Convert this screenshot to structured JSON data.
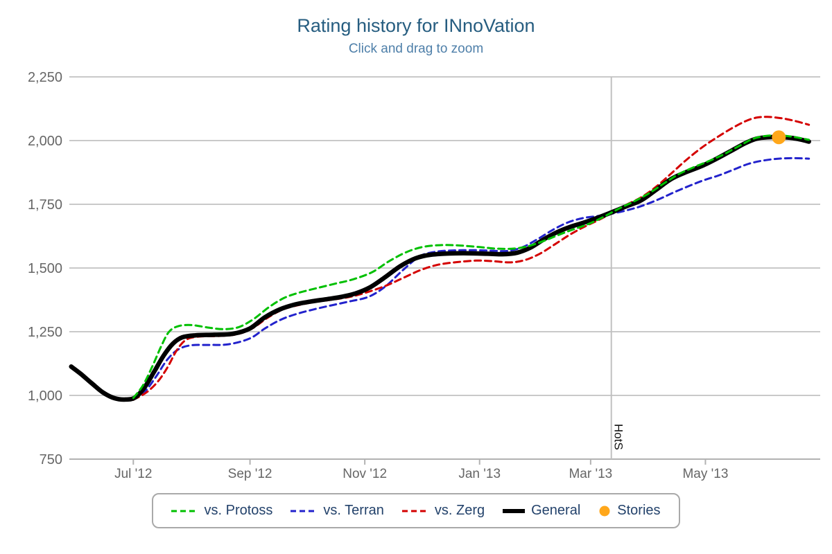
{
  "header": {
    "title": "Rating history for INnoVation",
    "subtitle": "Click and drag to zoom"
  },
  "styles": {
    "grid_color": "#c9c9c9",
    "axis_color": "#b2b2b2",
    "axis_text_color": "#666666",
    "plotline_color": "#c0c0c0",
    "plotline_label_color": "#111111",
    "title_color": "#265d80",
    "subtitle_color": "#4e7fa9",
    "legend_text_color": "#23426b",
    "legend_border_color": "#a9a9a9",
    "background": "#ffffff"
  },
  "chart_data": {
    "type": "line",
    "title": "Rating history for INnoVation",
    "subtitle": "Click and drag to zoom",
    "grid": "horizontal",
    "legend_position": "bottom",
    "x_axis": {
      "type": "time",
      "min": "2012-05-28",
      "max": "2013-07-01",
      "ticks": [
        {
          "value": "2012-07-01",
          "label": "Jul '12"
        },
        {
          "value": "2012-09-01",
          "label": "Sep '12"
        },
        {
          "value": "2012-11-01",
          "label": "Nov '12"
        },
        {
          "value": "2013-01-01",
          "label": "Jan '13"
        },
        {
          "value": "2013-03-01",
          "label": "Mar '13"
        },
        {
          "value": "2013-05-01",
          "label": "May '13"
        }
      ]
    },
    "y_axis": {
      "min": 750,
      "max": 2250,
      "ticks": [
        {
          "value": 750,
          "label": "750"
        },
        {
          "value": 1000,
          "label": "1,000"
        },
        {
          "value": 1250,
          "label": "1,250"
        },
        {
          "value": 1500,
          "label": "1,500"
        },
        {
          "value": 1750,
          "label": "1,750"
        },
        {
          "value": 2000,
          "label": "2,000"
        },
        {
          "value": 2250,
          "label": "2,250"
        }
      ]
    },
    "plot_lines": [
      {
        "axis": "x",
        "value": "2013-03-12",
        "label": "HotS"
      }
    ],
    "series": [
      {
        "name": "vs. Protoss",
        "type": "line",
        "color": "#00c000",
        "dashed": true,
        "width": 3,
        "points": [
          [
            "2012-07-01",
            990
          ],
          [
            "2012-07-06",
            1038
          ],
          [
            "2012-07-11",
            1112
          ],
          [
            "2012-07-16",
            1196
          ],
          [
            "2012-07-20",
            1250
          ],
          [
            "2012-07-25",
            1272
          ],
          [
            "2012-08-01",
            1276
          ],
          [
            "2012-08-10",
            1266
          ],
          [
            "2012-08-18",
            1260
          ],
          [
            "2012-08-26",
            1268
          ],
          [
            "2012-09-03",
            1300
          ],
          [
            "2012-09-11",
            1346
          ],
          [
            "2012-09-19",
            1382
          ],
          [
            "2012-09-27",
            1403
          ],
          [
            "2012-10-06",
            1420
          ],
          [
            "2012-10-16",
            1438
          ],
          [
            "2012-10-26",
            1456
          ],
          [
            "2012-11-05",
            1484
          ],
          [
            "2012-11-14",
            1527
          ],
          [
            "2012-11-23",
            1562
          ],
          [
            "2012-12-02",
            1583
          ],
          [
            "2012-12-12",
            1590
          ],
          [
            "2012-12-22",
            1588
          ],
          [
            "2013-01-01",
            1582
          ],
          [
            "2013-01-10",
            1576
          ],
          [
            "2013-01-19",
            1576
          ],
          [
            "2013-01-27",
            1586
          ],
          [
            "2013-02-04",
            1606
          ],
          [
            "2013-02-12",
            1630
          ],
          [
            "2013-02-20",
            1652
          ],
          [
            "2013-02-28",
            1673
          ],
          [
            "2013-03-08",
            1701
          ],
          [
            "2013-03-16",
            1733
          ],
          [
            "2013-03-24",
            1761
          ],
          [
            "2013-04-01",
            1793
          ],
          [
            "2013-04-09",
            1832
          ],
          [
            "2013-04-17",
            1869
          ],
          [
            "2013-04-25",
            1896
          ],
          [
            "2013-05-03",
            1920
          ],
          [
            "2013-05-11",
            1947
          ],
          [
            "2013-05-19",
            1979
          ],
          [
            "2013-05-26",
            2006
          ],
          [
            "2013-06-02",
            2018
          ],
          [
            "2013-06-10",
            2020
          ],
          [
            "2013-06-18",
            2013
          ],
          [
            "2013-06-25",
            2003
          ]
        ]
      },
      {
        "name": "vs. Terran",
        "type": "line",
        "color": "#2222cc",
        "dashed": true,
        "width": 3,
        "points": [
          [
            "2012-07-01",
            985
          ],
          [
            "2012-07-07",
            1014
          ],
          [
            "2012-07-13",
            1073
          ],
          [
            "2012-07-19",
            1140
          ],
          [
            "2012-07-25",
            1181
          ],
          [
            "2012-08-01",
            1197
          ],
          [
            "2012-08-11",
            1198
          ],
          [
            "2012-08-21",
            1201
          ],
          [
            "2012-09-01",
            1224
          ],
          [
            "2012-09-09",
            1263
          ],
          [
            "2012-09-17",
            1296
          ],
          [
            "2012-09-25",
            1318
          ],
          [
            "2012-10-04",
            1336
          ],
          [
            "2012-10-14",
            1353
          ],
          [
            "2012-10-24",
            1369
          ],
          [
            "2012-11-03",
            1387
          ],
          [
            "2012-11-12",
            1428
          ],
          [
            "2012-11-21",
            1490
          ],
          [
            "2012-11-30",
            1545
          ],
          [
            "2012-12-08",
            1563
          ],
          [
            "2012-12-18",
            1569
          ],
          [
            "2012-12-28",
            1570
          ],
          [
            "2013-01-07",
            1568
          ],
          [
            "2013-01-16",
            1567
          ],
          [
            "2013-01-24",
            1582
          ],
          [
            "2013-02-01",
            1614
          ],
          [
            "2013-02-09",
            1650
          ],
          [
            "2013-02-17",
            1679
          ],
          [
            "2013-02-25",
            1696
          ],
          [
            "2013-03-05",
            1704
          ],
          [
            "2013-03-12",
            1713
          ],
          [
            "2013-03-20",
            1726
          ],
          [
            "2013-03-28",
            1743
          ],
          [
            "2013-04-06",
            1769
          ],
          [
            "2013-04-14",
            1796
          ],
          [
            "2013-04-22",
            1821
          ],
          [
            "2013-04-30",
            1844
          ],
          [
            "2013-05-08",
            1863
          ],
          [
            "2013-05-16",
            1886
          ],
          [
            "2013-05-24",
            1909
          ],
          [
            "2013-06-01",
            1922
          ],
          [
            "2013-06-09",
            1929
          ],
          [
            "2013-06-17",
            1931
          ],
          [
            "2013-06-25",
            1929
          ]
        ]
      },
      {
        "name": "vs. Zerg",
        "type": "line",
        "color": "#d40000",
        "dashed": true,
        "width": 3,
        "points": [
          [
            "2012-07-01",
            983
          ],
          [
            "2012-07-08",
            1012
          ],
          [
            "2012-07-14",
            1054
          ],
          [
            "2012-07-19",
            1108
          ],
          [
            "2012-07-24",
            1176
          ],
          [
            "2012-07-29",
            1218
          ],
          [
            "2012-08-05",
            1231
          ],
          [
            "2012-08-15",
            1233
          ],
          [
            "2012-08-25",
            1240
          ],
          [
            "2012-09-02",
            1262
          ],
          [
            "2012-09-10",
            1303
          ],
          [
            "2012-09-18",
            1336
          ],
          [
            "2012-09-26",
            1353
          ],
          [
            "2012-10-05",
            1366
          ],
          [
            "2012-10-15",
            1376
          ],
          [
            "2012-10-25",
            1388
          ],
          [
            "2012-11-04",
            1409
          ],
          [
            "2012-11-13",
            1433
          ],
          [
            "2012-11-22",
            1463
          ],
          [
            "2012-12-01",
            1493
          ],
          [
            "2012-12-10",
            1513
          ],
          [
            "2012-12-20",
            1523
          ],
          [
            "2012-12-30",
            1529
          ],
          [
            "2013-01-08",
            1527
          ],
          [
            "2013-01-17",
            1522
          ],
          [
            "2013-01-25",
            1531
          ],
          [
            "2013-02-02",
            1556
          ],
          [
            "2013-02-10",
            1593
          ],
          [
            "2013-02-18",
            1631
          ],
          [
            "2013-02-26",
            1663
          ],
          [
            "2013-03-06",
            1691
          ],
          [
            "2013-03-12",
            1716
          ],
          [
            "2013-03-20",
            1748
          ],
          [
            "2013-03-28",
            1778
          ],
          [
            "2013-04-05",
            1820
          ],
          [
            "2013-04-13",
            1872
          ],
          [
            "2013-04-21",
            1925
          ],
          [
            "2013-04-29",
            1972
          ],
          [
            "2013-05-07",
            2012
          ],
          [
            "2013-05-15",
            2048
          ],
          [
            "2013-05-22",
            2075
          ],
          [
            "2013-05-28",
            2090
          ],
          [
            "2013-06-03",
            2093
          ],
          [
            "2013-06-10",
            2088
          ],
          [
            "2013-06-17",
            2078
          ],
          [
            "2013-06-25",
            2062
          ]
        ]
      },
      {
        "name": "General",
        "type": "line",
        "color": "#000000",
        "dashed": false,
        "width": 6.5,
        "points": [
          [
            "2012-05-29",
            1113
          ],
          [
            "2012-06-03",
            1085
          ],
          [
            "2012-06-09",
            1047
          ],
          [
            "2012-06-15",
            1011
          ],
          [
            "2012-06-21",
            989
          ],
          [
            "2012-06-27",
            984
          ],
          [
            "2012-07-02",
            992
          ],
          [
            "2012-07-07",
            1032
          ],
          [
            "2012-07-12",
            1092
          ],
          [
            "2012-07-17",
            1155
          ],
          [
            "2012-07-22",
            1203
          ],
          [
            "2012-07-27",
            1228
          ],
          [
            "2012-08-03",
            1236
          ],
          [
            "2012-08-13",
            1238
          ],
          [
            "2012-08-23",
            1242
          ],
          [
            "2012-09-01",
            1263
          ],
          [
            "2012-09-09",
            1307
          ],
          [
            "2012-09-17",
            1338
          ],
          [
            "2012-09-25",
            1357
          ],
          [
            "2012-10-03",
            1368
          ],
          [
            "2012-10-11",
            1377
          ],
          [
            "2012-10-19",
            1386
          ],
          [
            "2012-10-27",
            1400
          ],
          [
            "2012-11-04",
            1425
          ],
          [
            "2012-11-12",
            1465
          ],
          [
            "2012-11-20",
            1508
          ],
          [
            "2012-11-28",
            1538
          ],
          [
            "2012-12-06",
            1552
          ],
          [
            "2012-12-16",
            1557
          ],
          [
            "2012-12-26",
            1558
          ],
          [
            "2013-01-05",
            1556
          ],
          [
            "2013-01-13",
            1554
          ],
          [
            "2013-01-21",
            1560
          ],
          [
            "2013-01-28",
            1580
          ],
          [
            "2013-02-04",
            1612
          ],
          [
            "2013-02-11",
            1640
          ],
          [
            "2013-02-18",
            1661
          ],
          [
            "2013-02-25",
            1677
          ],
          [
            "2013-03-04",
            1695
          ],
          [
            "2013-03-12",
            1718
          ],
          [
            "2013-03-20",
            1742
          ],
          [
            "2013-03-28",
            1766
          ],
          [
            "2013-04-05",
            1808
          ],
          [
            "2013-04-13",
            1850
          ],
          [
            "2013-04-21",
            1877
          ],
          [
            "2013-04-29",
            1900
          ],
          [
            "2013-05-07",
            1929
          ],
          [
            "2013-05-15",
            1961
          ],
          [
            "2013-05-22",
            1989
          ],
          [
            "2013-05-28",
            2007
          ],
          [
            "2013-06-03",
            2013
          ],
          [
            "2013-06-12",
            2013
          ],
          [
            "2013-06-18",
            2008
          ],
          [
            "2013-06-25",
            1996
          ]
        ]
      },
      {
        "name": "Stories",
        "type": "scatter",
        "color": "#ffa71a",
        "marker_radius": 10,
        "points": [
          [
            "2013-06-09",
            2013
          ]
        ]
      }
    ],
    "legend": {
      "items": [
        "vs. Protoss",
        "vs. Terran",
        "vs. Zerg",
        "General",
        "Stories"
      ]
    }
  }
}
